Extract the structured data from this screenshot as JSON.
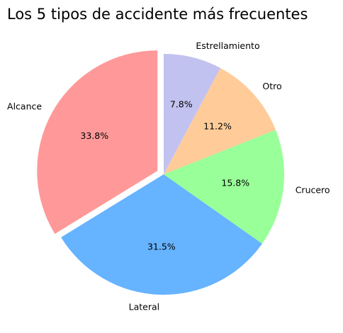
{
  "chart_data": {
    "type": "pie",
    "title": "Los 5 tipos de accidente más frecuentes",
    "start_angle_deg": 90,
    "direction": "counterclockwise",
    "slices": [
      {
        "label": "Alcance",
        "value": 33.8,
        "pct_label": "33.8%",
        "color": "#ff9999",
        "exploded": true
      },
      {
        "label": "Lateral",
        "value": 31.5,
        "pct_label": "31.5%",
        "color": "#66b3ff",
        "exploded": false
      },
      {
        "label": "Crucero",
        "value": 15.8,
        "pct_label": "15.8%",
        "color": "#99ff99",
        "exploded": false
      },
      {
        "label": "Otro",
        "value": 11.2,
        "pct_label": "11.2%",
        "color": "#ffcc99",
        "exploded": false
      },
      {
        "label": "Estrellamiento",
        "value": 7.8,
        "pct_label": "7.8%",
        "color": "#c2c2f0",
        "exploded": false
      }
    ]
  }
}
